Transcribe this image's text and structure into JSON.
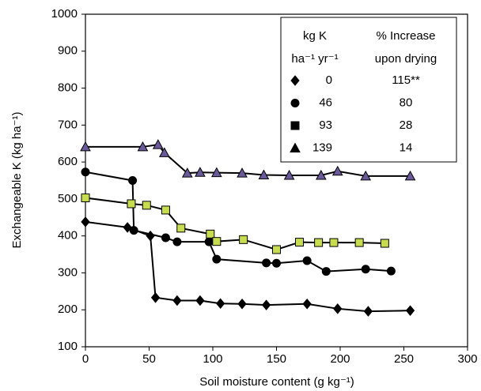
{
  "chart_data": {
    "type": "line",
    "xlabel": "Soil moisture content (g kg⁻¹)",
    "ylabel": "Exchangeable K (kg ha⁻¹)",
    "xlim": [
      0,
      300
    ],
    "xticks": [
      0,
      50,
      100,
      150,
      200,
      250,
      300
    ],
    "ylim": [
      100,
      1000
    ],
    "yticks": [
      100,
      200,
      300,
      400,
      500,
      600,
      700,
      800,
      900,
      1000
    ],
    "line_color": "#000000",
    "legend_headers": [
      "kg K",
      "% Increase",
      "ha⁻¹  yr⁻¹",
      "upon drying"
    ],
    "series": [
      {
        "name": "0",
        "increase": "115**",
        "marker": "diamond",
        "color": "#000000",
        "x": [
          0,
          33,
          51,
          55,
          72,
          90,
          106,
          123,
          142,
          174,
          198,
          222,
          255
        ],
        "values": [
          438,
          423,
          400,
          233,
          225,
          225,
          217,
          216,
          213,
          216,
          203,
          196,
          198
        ]
      },
      {
        "name": "46",
        "increase": "80",
        "marker": "circle",
        "color": "#000000",
        "x": [
          0,
          37,
          38,
          63,
          72,
          97,
          103,
          142,
          150,
          174,
          189,
          220,
          240
        ],
        "values": [
          573,
          550,
          415,
          395,
          384,
          384,
          337,
          327,
          326,
          333,
          304,
          310,
          305
        ]
      },
      {
        "name": "93",
        "increase": "28",
        "marker": "square",
        "color": "#c8dc50",
        "x": [
          0,
          36,
          48,
          63,
          75,
          98,
          103,
          124,
          150,
          168,
          183,
          195,
          215,
          235
        ],
        "values": [
          503,
          487,
          483,
          470,
          421,
          405,
          385,
          390,
          363,
          383,
          382,
          382,
          382,
          380
        ]
      },
      {
        "name": "139",
        "increase": "14",
        "marker": "triangle",
        "color": "#6a5a9a",
        "x": [
          0,
          45,
          57,
          62,
          80,
          90,
          103,
          123,
          140,
          160,
          185,
          198,
          220,
          255
        ],
        "values": [
          641,
          641,
          647,
          625,
          570,
          572,
          571,
          570,
          565,
          564,
          564,
          575,
          562,
          562
        ]
      }
    ]
  }
}
